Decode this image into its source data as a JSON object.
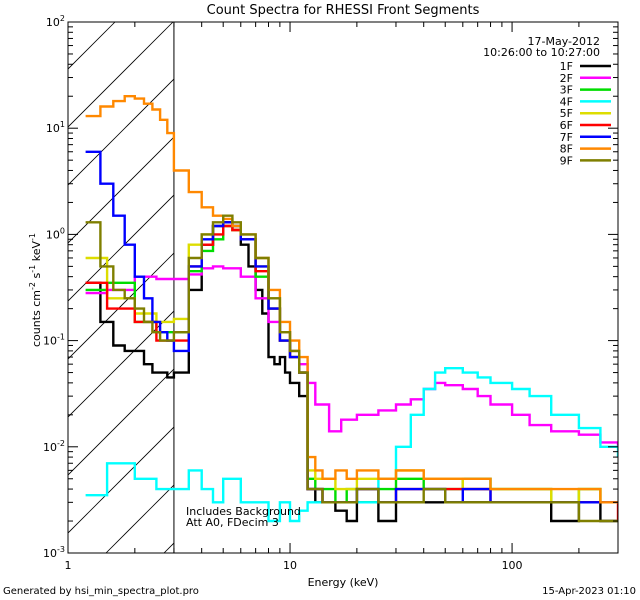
{
  "chart_data": {
    "type": "line",
    "title": "Count Spectra for RHESSI Front Segments",
    "xlabel": "Energy (keV)",
    "ylabel": "counts cm-2 s-1 keV-1",
    "ylabel_parts": {
      "base": "counts cm",
      "e1": "-2",
      "mid": " s",
      "e2": "-1",
      "unit": " keV",
      "e3": "-1"
    },
    "xscale": "log",
    "yscale": "log",
    "xlim": [
      1,
      300
    ],
    "ylim": [
      0.001,
      100
    ],
    "x_ticks": [
      {
        "value": 1,
        "label": "1"
      },
      {
        "value": 10,
        "label": "10"
      },
      {
        "value": 100,
        "label": "100"
      }
    ],
    "y_ticks": [
      {
        "value": 0.001,
        "base": "10",
        "exp": "-3"
      },
      {
        "value": 0.01,
        "base": "10",
        "exp": "-2"
      },
      {
        "value": 0.1,
        "base": "10",
        "exp": "-1"
      },
      {
        "value": 1,
        "base": "10",
        "exp": "0"
      },
      {
        "value": 10,
        "base": "10",
        "exp": "1"
      },
      {
        "value": 100,
        "base": "10",
        "exp": "2"
      }
    ],
    "date": "17-May-2012",
    "time_range": "10:26:00 to 10:27:00",
    "attenuator_boundary_kev": 3,
    "annotation_lines": [
      "Includes Background",
      "Att A0, FDecim 3"
    ],
    "footer_left": "Generated by hsi_min_spectra_plot.pro",
    "footer_right": "15-Apr-2023 01:10",
    "series": [
      {
        "name": "1F",
        "color": "#000000",
        "x": [
          1.2,
          1.4,
          1.6,
          1.8,
          2.0,
          2.2,
          2.4,
          2.6,
          2.8,
          3.0,
          3.5,
          4.0,
          4.5,
          5.0,
          5.5,
          6.0,
          6.5,
          7.0,
          7.5,
          8.0,
          8.5,
          9.0,
          9.5,
          10,
          11,
          12,
          13,
          14,
          16,
          18,
          20,
          25,
          30,
          40,
          50,
          60,
          80,
          100,
          150,
          200,
          250,
          300
        ],
        "y": [
          0.35,
          0.15,
          0.09,
          0.08,
          0.08,
          0.06,
          0.05,
          0.05,
          0.045,
          0.05,
          0.3,
          0.8,
          1.2,
          1.3,
          1.1,
          0.8,
          0.5,
          0.3,
          0.18,
          0.07,
          0.06,
          0.07,
          0.05,
          0.04,
          0.03,
          0.004,
          0.003,
          0.003,
          0.0025,
          0.002,
          0.003,
          0.002,
          0.003,
          0.003,
          0.003,
          0.003,
          0.003,
          0.003,
          0.002,
          0.003,
          0.002,
          0.002
        ]
      },
      {
        "name": "2F",
        "color": "#ff00ff",
        "x": [
          1.2,
          1.5,
          2.0,
          2.5,
          3.0,
          3.5,
          4.0,
          4.5,
          5.0,
          6.0,
          7.0,
          8.0,
          9.0,
          10,
          11,
          12,
          13,
          15,
          17,
          20,
          25,
          30,
          35,
          40,
          45,
          50,
          60,
          70,
          80,
          100,
          120,
          150,
          200,
          250,
          300
        ],
        "y": [
          0.28,
          0.3,
          0.4,
          0.38,
          0.38,
          0.42,
          0.48,
          0.5,
          0.48,
          0.4,
          0.25,
          0.15,
          0.12,
          0.08,
          0.06,
          0.04,
          0.025,
          0.014,
          0.018,
          0.02,
          0.022,
          0.025,
          0.028,
          0.035,
          0.04,
          0.038,
          0.035,
          0.03,
          0.025,
          0.02,
          0.016,
          0.014,
          0.013,
          0.011,
          0.01
        ]
      },
      {
        "name": "3F",
        "color": "#00dd00",
        "x": [
          1.2,
          1.5,
          2.0,
          2.5,
          3.0,
          3.5,
          4.0,
          4.5,
          5.0,
          5.5,
          6.0,
          7.0,
          8.0,
          9.0,
          10,
          11,
          12,
          13,
          14,
          16,
          18,
          20,
          25,
          30,
          40,
          50,
          60,
          80,
          100,
          150,
          200,
          250,
          300
        ],
        "y": [
          0.3,
          0.35,
          0.15,
          0.12,
          0.12,
          0.45,
          0.7,
          0.9,
          1.2,
          1.2,
          0.9,
          0.4,
          0.2,
          0.1,
          0.07,
          0.05,
          0.005,
          0.004,
          0.004,
          0.003,
          0.004,
          0.003,
          0.004,
          0.005,
          0.004,
          0.004,
          0.005,
          0.004,
          0.004,
          0.003,
          0.004,
          0.003,
          0.003
        ]
      },
      {
        "name": "4F",
        "color": "#00ffff",
        "x": [
          1.2,
          1.5,
          2.0,
          2.5,
          3.0,
          3.5,
          4.0,
          4.5,
          5.0,
          6.0,
          7.0,
          8.0,
          9.0,
          10,
          11,
          12,
          14,
          16,
          18,
          20,
          25,
          30,
          35,
          40,
          45,
          50,
          55,
          60,
          70,
          80,
          100,
          120,
          150,
          200,
          250,
          300
        ],
        "y": [
          0.0035,
          0.007,
          0.005,
          0.004,
          0.004,
          0.006,
          0.004,
          0.003,
          0.005,
          0.003,
          0.003,
          0.002,
          0.003,
          0.002,
          0.0025,
          0.003,
          0.003,
          0.003,
          0.003,
          0.003,
          0.005,
          0.01,
          0.02,
          0.035,
          0.05,
          0.055,
          0.055,
          0.05,
          0.045,
          0.04,
          0.035,
          0.03,
          0.02,
          0.015,
          0.01,
          0.008
        ]
      },
      {
        "name": "5F",
        "color": "#dddd00",
        "x": [
          1.2,
          1.5,
          2.0,
          2.5,
          3.0,
          3.5,
          4.0,
          4.5,
          5.0,
          5.5,
          6.0,
          7.0,
          8.0,
          9.0,
          10,
          11,
          12,
          13,
          14,
          16,
          18,
          20,
          25,
          30,
          40,
          50,
          60,
          80,
          100,
          150,
          200,
          250,
          300
        ],
        "y": [
          0.6,
          0.25,
          0.18,
          0.15,
          0.16,
          0.8,
          1.0,
          1.2,
          1.2,
          1.1,
          0.9,
          0.5,
          0.25,
          0.12,
          0.08,
          0.05,
          0.006,
          0.005,
          0.005,
          0.004,
          0.004,
          0.005,
          0.005,
          0.006,
          0.005,
          0.005,
          0.004,
          0.004,
          0.004,
          0.003,
          0.004,
          0.003,
          0.003
        ]
      },
      {
        "name": "6F",
        "color": "#ff0000",
        "x": [
          1.2,
          1.5,
          2.0,
          2.5,
          3.0,
          3.5,
          4.0,
          4.5,
          5.0,
          5.5,
          6.0,
          7.0,
          8.0,
          9.0,
          10,
          11,
          12,
          13,
          14,
          16,
          18,
          20,
          25,
          30,
          40,
          50,
          60,
          80,
          100,
          150,
          200,
          250,
          300
        ],
        "y": [
          0.35,
          0.2,
          0.15,
          0.1,
          0.1,
          0.5,
          0.8,
          1.0,
          1.2,
          1.1,
          0.9,
          0.45,
          0.2,
          0.1,
          0.07,
          0.05,
          0.004,
          0.004,
          0.003,
          0.003,
          0.003,
          0.004,
          0.003,
          0.004,
          0.004,
          0.004,
          0.004,
          0.003,
          0.003,
          0.003,
          0.003,
          0.003,
          0.002
        ]
      },
      {
        "name": "7F",
        "color": "#0000ff",
        "x": [
          1.2,
          1.4,
          1.6,
          1.8,
          2.0,
          2.2,
          2.4,
          2.6,
          2.8,
          3.0,
          3.5,
          4.0,
          4.5,
          5.0,
          5.5,
          6.0,
          7.0,
          8.0,
          9.0,
          10,
          11,
          12,
          13,
          14,
          16,
          18,
          20,
          25,
          30,
          40,
          50,
          60,
          80,
          100,
          150,
          200,
          250,
          300
        ],
        "y": [
          6.0,
          3.0,
          1.5,
          0.8,
          0.4,
          0.25,
          0.15,
          0.12,
          0.1,
          0.08,
          0.5,
          0.9,
          1.2,
          1.3,
          1.2,
          0.9,
          0.5,
          0.2,
          0.1,
          0.07,
          0.05,
          0.004,
          0.004,
          0.003,
          0.003,
          0.003,
          0.004,
          0.003,
          0.004,
          0.004,
          0.003,
          0.004,
          0.003,
          0.003,
          0.003,
          0.003,
          0.003,
          0.003
        ]
      },
      {
        "name": "8F",
        "color": "#ff8800",
        "x": [
          1.2,
          1.4,
          1.6,
          1.8,
          2.0,
          2.2,
          2.4,
          2.6,
          2.8,
          3.0,
          3.5,
          4.0,
          4.5,
          5.0,
          5.5,
          6.0,
          7.0,
          8.0,
          9.0,
          10,
          11,
          12,
          13,
          14,
          16,
          18,
          20,
          25,
          30,
          40,
          50,
          60,
          80,
          100,
          150,
          200,
          250,
          300
        ],
        "y": [
          13,
          16,
          18,
          20,
          19,
          17,
          15,
          12,
          9,
          4,
          2.5,
          1.8,
          1.5,
          1.4,
          1.2,
          1.0,
          0.6,
          0.3,
          0.15,
          0.1,
          0.07,
          0.008,
          0.006,
          0.005,
          0.006,
          0.005,
          0.006,
          0.005,
          0.006,
          0.005,
          0.005,
          0.005,
          0.004,
          0.004,
          0.004,
          0.004,
          0.003,
          0.003
        ]
      },
      {
        "name": "9F",
        "color": "#7f7f00",
        "x": [
          1.2,
          1.4,
          1.6,
          1.8,
          2.0,
          2.2,
          2.4,
          2.6,
          2.8,
          3.0,
          3.5,
          4.0,
          4.5,
          5.0,
          5.5,
          6.0,
          7.0,
          8.0,
          9.0,
          10,
          11,
          12,
          13,
          14,
          16,
          18,
          20,
          25,
          30,
          40,
          50,
          60,
          80,
          100,
          150,
          200,
          250,
          300
        ],
        "y": [
          1.3,
          0.5,
          0.3,
          0.25,
          0.2,
          0.15,
          0.12,
          0.1,
          0.1,
          0.12,
          0.6,
          1.0,
          1.3,
          1.5,
          1.3,
          1.0,
          0.6,
          0.25,
          0.12,
          0.08,
          0.05,
          0.004,
          0.004,
          0.003,
          0.003,
          0.003,
          0.004,
          0.003,
          0.003,
          0.004,
          0.003,
          0.003,
          0.003,
          0.003,
          0.003,
          0.002,
          0.002,
          0.002
        ]
      }
    ]
  }
}
